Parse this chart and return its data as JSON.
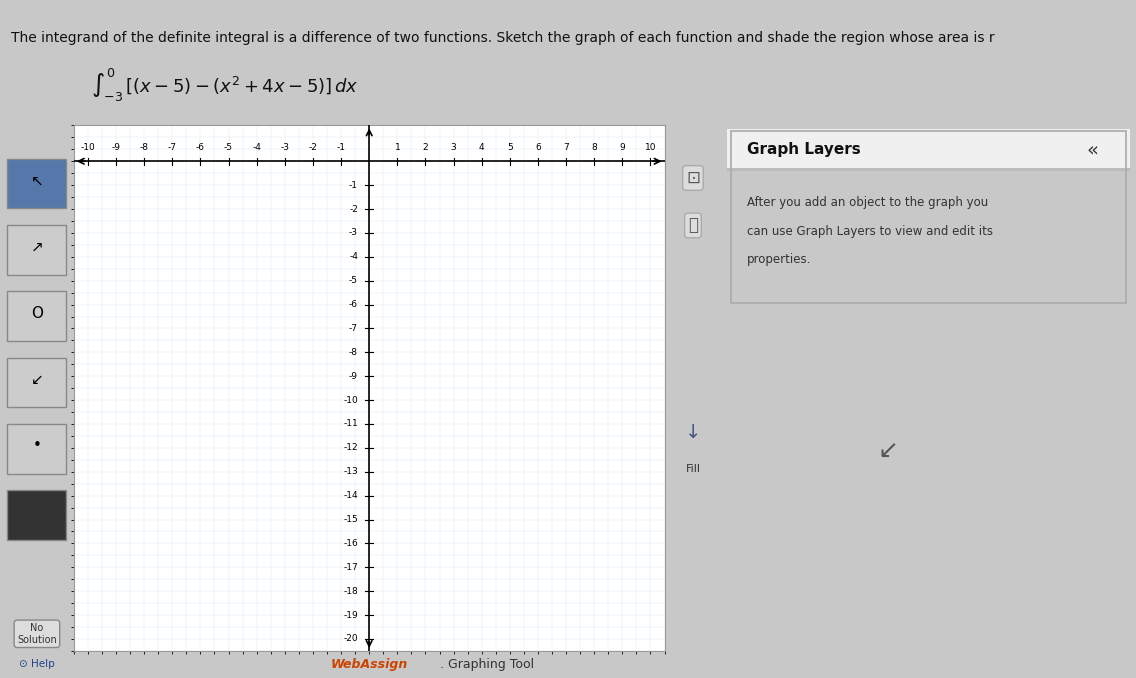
{
  "title_text": "The integrand of the definite integral is a difference of two functions. Sketch the graph of each function and shade the region whose area is r",
  "formula_text": "[(x − 5) − (x² + 4x − 5)]dx",
  "integral_lower": -3,
  "integral_upper": 0,
  "xmin": -10,
  "xmax": 10,
  "ymin": -20,
  "ymax": 1,
  "x_ticks": [
    -10,
    -9,
    -8,
    -7,
    -6,
    -5,
    -4,
    -3,
    -2,
    -1,
    1,
    2,
    3,
    4,
    5,
    6,
    7,
    8,
    9,
    10
  ],
  "y_ticks": [
    -1,
    -2,
    -3,
    -4,
    -5,
    -6,
    -7,
    -8,
    -9,
    -10,
    -11,
    -12,
    -13,
    -14,
    -15,
    -16,
    -17,
    -18,
    -19,
    -20
  ],
  "grid_color": "#a8c8e8",
  "grid_color_minor": "#d0e8f8",
  "bg_color": "#f0f8ff",
  "outer_bg": "#d8d8d8",
  "panel_bg": "#e8e8e8",
  "graph_bg": "#ffffff",
  "axis_color": "#000000",
  "text_color": "#000000",
  "graph_layers_title": "Graph Layers",
  "graph_layers_text1": "After you add an object to the graph you",
  "graph_layers_text2": "can use Graph Layers to view and edit its",
  "graph_layers_text3": "properties.",
  "webassign_text": "WebAssign. Graphing Tool",
  "help_text": "Help",
  "fill_text": "Fill",
  "no_solution_text": "No\nSolution"
}
